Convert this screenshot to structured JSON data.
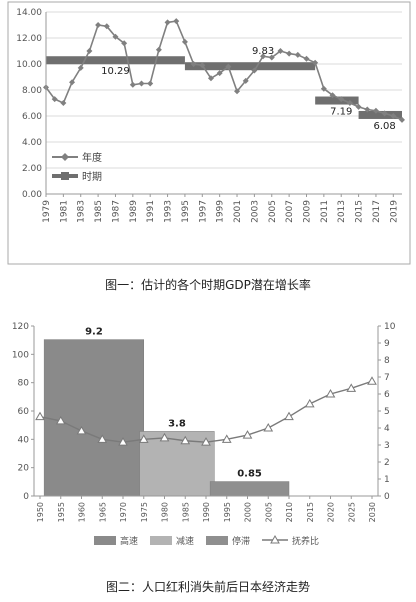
{
  "figure1": {
    "caption": "图一：估计的各个时期GDP潜在增长率",
    "legend": {
      "year_label": "年度",
      "period_label": "时期"
    },
    "colors": {
      "line": "#808080",
      "period": "#6f6f6f",
      "axis": "#999999",
      "grid": "#cfcfcf"
    }
  },
  "figure2": {
    "caption": "图二：人口红利消失前后日本经济走势",
    "legend": {
      "high_label": "高速",
      "slow_label": "减速",
      "stag_label": "停滞",
      "ratio_label": "抚养比"
    },
    "colors": {
      "high": "#8a8a8a",
      "slow": "#b3b3b3",
      "stag": "#8f8f8f",
      "ratio": "#7a7a7a"
    }
  },
  "chart_data": [
    {
      "type": "line",
      "title": "图一：估计的各个时期GDP潜在增长率",
      "ylim": [
        0,
        14
      ],
      "yticks": [
        "0.00",
        "2.00",
        "4.00",
        "6.00",
        "8.00",
        "10.00",
        "12.00",
        "14.00"
      ],
      "xticks": [
        "1979",
        "1981",
        "1983",
        "1985",
        "1987",
        "1989",
        "1991",
        "1993",
        "1995",
        "1997",
        "1999",
        "2001",
        "2003",
        "2005",
        "2007",
        "2009",
        "2011",
        "2013",
        "2015",
        "2017",
        "2019"
      ],
      "series": [
        {
          "name": "年度",
          "x": [
            1979,
            1980,
            1981,
            1982,
            1983,
            1984,
            1985,
            1986,
            1987,
            1988,
            1989,
            1990,
            1991,
            1992,
            1993,
            1994,
            1995,
            1996,
            1997,
            1998,
            1999,
            2000,
            2001,
            2002,
            2003,
            2004,
            2005,
            2006,
            2007,
            2008,
            2009,
            2010,
            2011,
            2012,
            2013,
            2014,
            2015,
            2016,
            2017,
            2018,
            2019,
            2020
          ],
          "values": [
            8.2,
            7.3,
            7.0,
            8.6,
            9.7,
            11.0,
            13.0,
            12.9,
            12.1,
            11.6,
            8.4,
            8.5,
            8.5,
            11.1,
            13.2,
            13.3,
            11.7,
            10.0,
            9.9,
            8.9,
            9.3,
            9.8,
            7.9,
            8.7,
            9.5,
            10.6,
            10.5,
            11.0,
            10.8,
            10.7,
            10.4,
            10.1,
            8.1,
            7.6,
            7.3,
            7.0,
            6.7,
            6.5,
            6.4,
            6.2,
            6.0,
            5.7
          ]
        },
        {
          "name": "时期",
          "periods": [
            {
              "start": 1979,
              "end": 1995,
              "value": 10.29
            },
            {
              "start": 1995,
              "end": 2010,
              "value": 9.83
            },
            {
              "start": 2010,
              "end": 2015,
              "value": 7.19
            },
            {
              "start": 2015,
              "end": 2020,
              "value": 6.08
            }
          ]
        }
      ],
      "annotations": [
        "10.29",
        "9.83",
        "7.19",
        "6.08"
      ]
    },
    {
      "type": "bar",
      "title": "图二：人口红利消失前后日本经济走势",
      "ylim_left": [
        0,
        120
      ],
      "yticks_left": [
        "0",
        "20",
        "40",
        "60",
        "80",
        "100",
        "120"
      ],
      "ylim_right": [
        0,
        10
      ],
      "yticks_right": [
        "0",
        "1",
        "2",
        "3",
        "4",
        "5",
        "6",
        "7",
        "8",
        "9",
        "10"
      ],
      "xticks": [
        "1950",
        "1955",
        "1960",
        "1965",
        "1970",
        "1975",
        "1980",
        "1985",
        "1990",
        "1995",
        "2000",
        "2005",
        "2010",
        "2015",
        "2020",
        "2025",
        "2030"
      ],
      "series": [
        {
          "name": "高速",
          "start": 1951,
          "end": 1975,
          "value": 9.2,
          "label": "9.2"
        },
        {
          "name": "减速",
          "start": 1974,
          "end": 1992,
          "value": 3.8,
          "label": "3.8"
        },
        {
          "name": "停滞",
          "start": 1991,
          "end": 2010,
          "value": 0.85,
          "label": "0.85"
        },
        {
          "name": "抚养比",
          "x": [
            1950,
            1955,
            1960,
            1965,
            1970,
            1975,
            1980,
            1985,
            1990,
            1995,
            2000,
            2005,
            2010,
            2015,
            2020,
            2025,
            2030
          ],
          "values": [
            56,
            53,
            46,
            40,
            38,
            40,
            41,
            39,
            38,
            40,
            43,
            48,
            56,
            65,
            72,
            76,
            81
          ]
        }
      ]
    }
  ]
}
